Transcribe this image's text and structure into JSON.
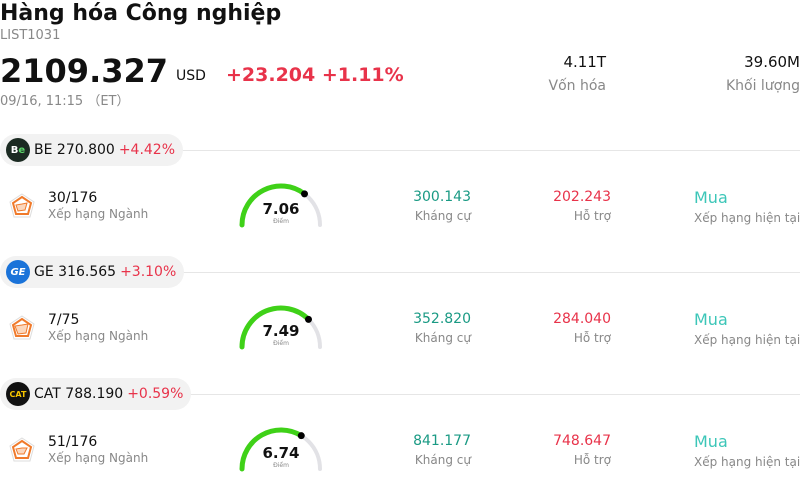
{
  "header": {
    "title": "Hàng hóa Công nghiệp",
    "code": "LIST1031",
    "price": "2109.327",
    "currency": "USD",
    "change": "+23.204 +1.11%",
    "time": "09/16, 11:15 （ET）",
    "market_cap_value": "4.11T",
    "market_cap_label": "Vốn hóa",
    "volume_value": "39.60M",
    "volume_label": "Khối lượng"
  },
  "stocks": [
    {
      "ticker": "BE",
      "logo_text": "Be",
      "price": "270.800",
      "change": "+4.42%",
      "rank": "30/176",
      "rank_label": "Xếp hạng Ngành",
      "score": "7.06",
      "score_label": "Điểm",
      "score_fraction": 0.706,
      "resistance": "300.143",
      "resistance_label": "Kháng cự",
      "support": "202.243",
      "support_label": "Hỗ trợ",
      "rating": "Mua",
      "rating_label": "Xếp hạng hiện tại"
    },
    {
      "ticker": "GE",
      "logo_text": "GE",
      "price": "316.565",
      "change": "+3.10%",
      "rank": "7/75",
      "rank_label": "Xếp hạng Ngành",
      "score": "7.49",
      "score_label": "Điểm",
      "score_fraction": 0.749,
      "resistance": "352.820",
      "resistance_label": "Kháng cự",
      "support": "284.040",
      "support_label": "Hỗ trợ",
      "rating": "Mua",
      "rating_label": "Xếp hạng hiện tại"
    },
    {
      "ticker": "CAT",
      "logo_text": "CAT",
      "price": "788.190",
      "change": "+0.59%",
      "rank": "51/176",
      "rank_label": "Xếp hạng Ngành",
      "score": "6.74",
      "score_label": "Điểm",
      "score_fraction": 0.674,
      "resistance": "841.177",
      "resistance_label": "Kháng cự",
      "support": "748.647",
      "support_label": "Hỗ trợ",
      "rating": "Mua",
      "rating_label": "Xếp hạng hiện tại"
    }
  ],
  "colors": {
    "up": "#e8334a",
    "resistance": "#1a9a84",
    "rating": "#3cc6b8",
    "gauge_fill": "#3fd118",
    "gauge_track": "#e2e2e6",
    "be_logo": "#1b2a22",
    "ge_logo": "#1a73d9",
    "cat_logo": "#111111"
  },
  "icons": {
    "rank": "pentagon-rank-icon",
    "gauge_knob": "gauge-knob-icon"
  }
}
